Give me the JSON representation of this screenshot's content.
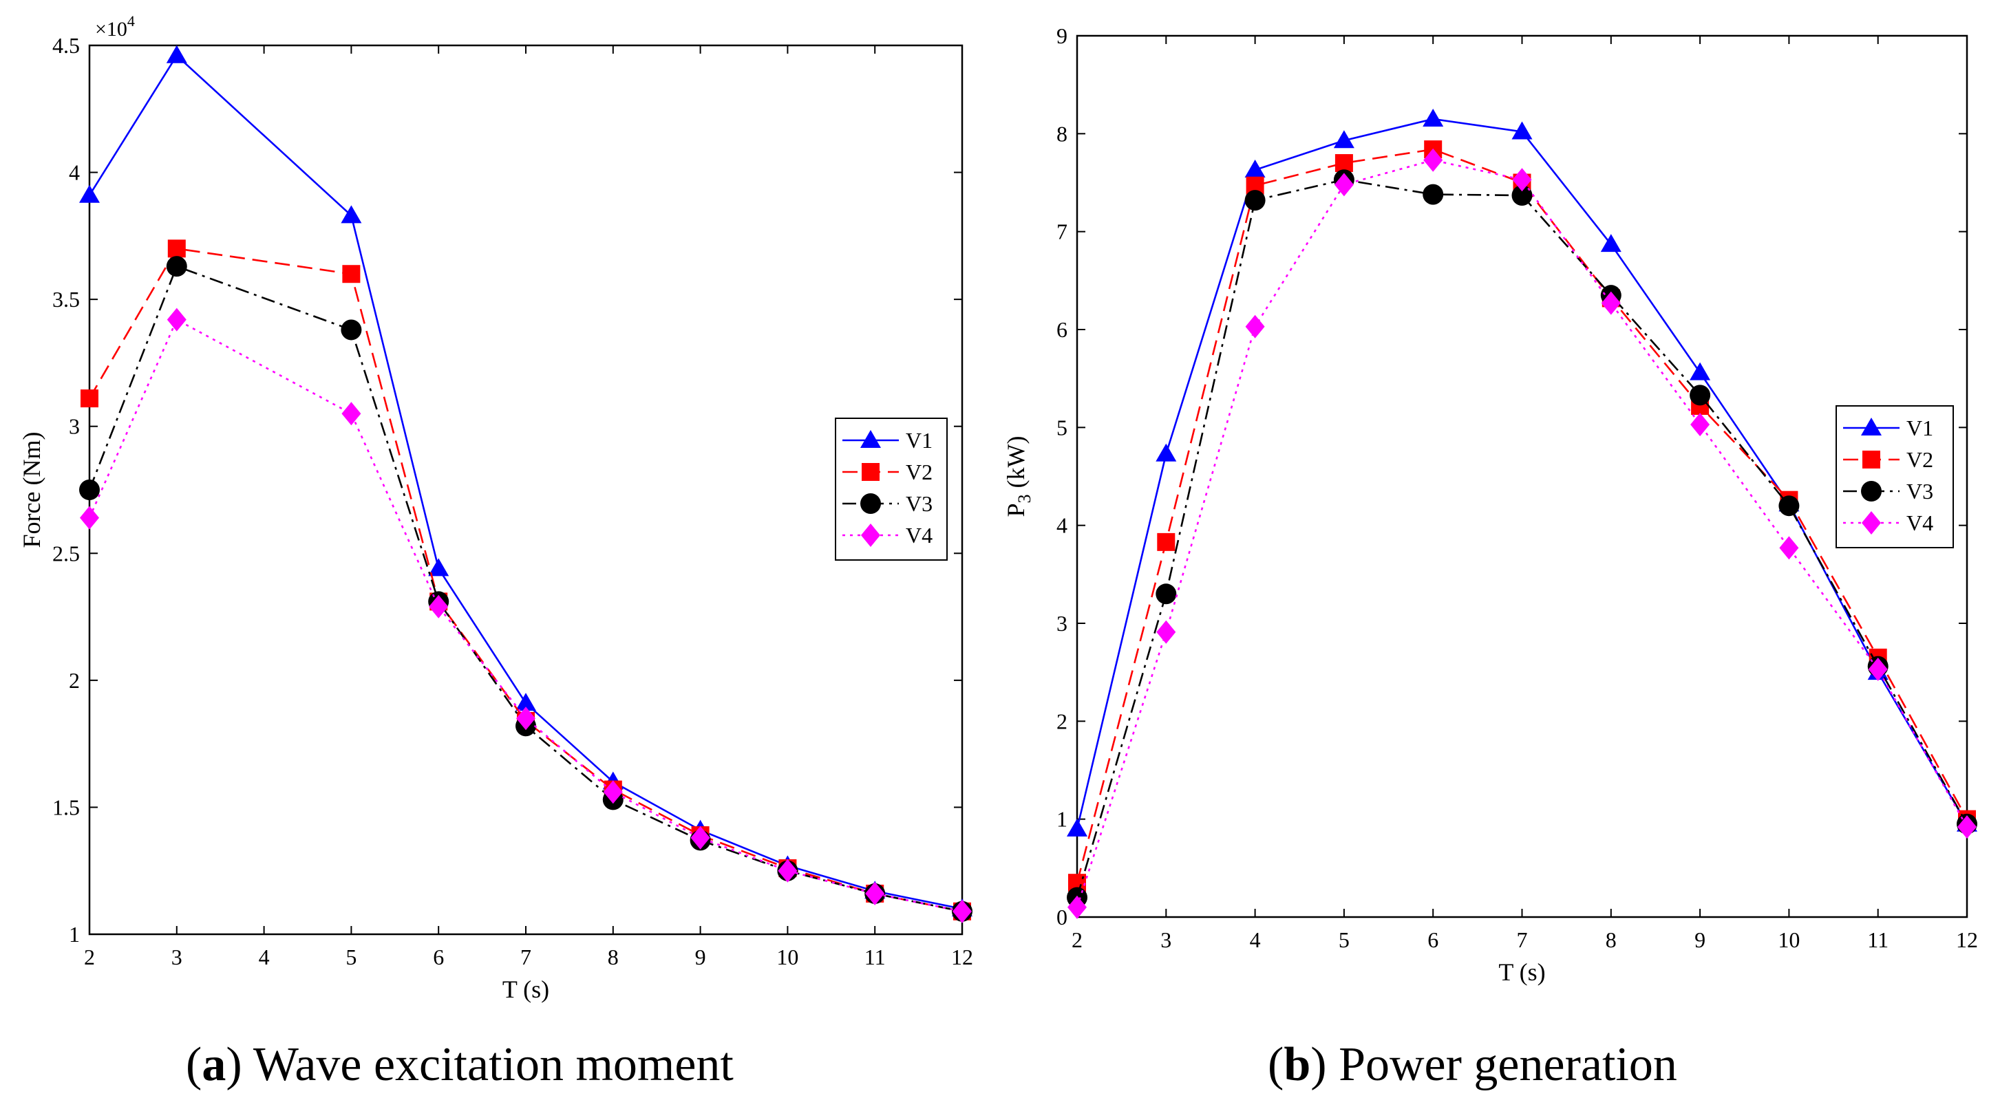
{
  "chart_data": [
    {
      "type": "line",
      "x": [
        2,
        3,
        5,
        6,
        7,
        8,
        9,
        10,
        11,
        12
      ],
      "xticks": [
        2,
        3,
        4,
        5,
        6,
        7,
        8,
        9,
        10,
        11,
        12
      ],
      "xlim": [
        2,
        12
      ],
      "ylim": [
        1,
        4.5
      ],
      "yticks": [
        "1",
        "1.5",
        "2",
        "2.5",
        "3",
        "3.5",
        "4",
        "4.5"
      ],
      "ytick_values": [
        1,
        1.5,
        2,
        2.5,
        3,
        3.5,
        4,
        4.5
      ],
      "yscale_label": "×10",
      "yscale_exp": "4",
      "xlabel": "T (s)",
      "ylabel": "Force (Nm)",
      "legend_position": "center-right",
      "series": [
        {
          "name": "V1",
          "color": "#0000ff",
          "dash": "solid",
          "marker": "triangle",
          "values": [
            3.91,
            4.46,
            3.83,
            2.44,
            1.91,
            1.6,
            1.41,
            1.27,
            1.17,
            1.1
          ]
        },
        {
          "name": "V2",
          "color": "#ff0000",
          "dash": "dashed",
          "marker": "square",
          "values": [
            3.11,
            3.7,
            3.6,
            2.31,
            1.84,
            1.57,
            1.39,
            1.26,
            1.16,
            1.09
          ]
        },
        {
          "name": "V3",
          "color": "#000000",
          "dash": "dashdot",
          "marker": "circle",
          "values": [
            2.75,
            3.63,
            3.38,
            2.31,
            1.82,
            1.53,
            1.37,
            1.25,
            1.16,
            1.09
          ]
        },
        {
          "name": "V4",
          "color": "#ff00ff",
          "dash": "dotted",
          "marker": "diamond",
          "values": [
            2.64,
            3.42,
            3.05,
            2.29,
            1.85,
            1.56,
            1.38,
            1.25,
            1.16,
            1.09
          ]
        }
      ]
    },
    {
      "type": "line",
      "x": [
        2,
        3,
        4,
        5,
        6,
        7,
        8,
        9,
        10,
        11,
        12
      ],
      "xticks": [
        2,
        3,
        4,
        5,
        6,
        7,
        8,
        9,
        10,
        11,
        12
      ],
      "xlim": [
        2,
        12
      ],
      "ylim": [
        0,
        9
      ],
      "yticks": [
        "0",
        "1",
        "2",
        "3",
        "4",
        "5",
        "6",
        "7",
        "8",
        "9"
      ],
      "ytick_values": [
        0,
        1,
        2,
        3,
        4,
        5,
        6,
        7,
        8,
        9
      ],
      "xlabel": "T (s)",
      "ylabel_main": "P",
      "ylabel_sub": "3",
      "ylabel_rest": " (kW)",
      "legend_position": "center-right",
      "series": [
        {
          "name": "V1",
          "color": "#0000ff",
          "dash": "solid",
          "marker": "triangle",
          "values": [
            0.9,
            4.73,
            7.63,
            7.93,
            8.15,
            8.02,
            6.87,
            5.56,
            4.22,
            2.5,
            0.95
          ]
        },
        {
          "name": "V2",
          "color": "#ff0000",
          "dash": "dashed",
          "marker": "square",
          "values": [
            0.35,
            3.83,
            7.47,
            7.7,
            7.84,
            7.5,
            6.32,
            5.22,
            4.26,
            2.65,
            1.0
          ]
        },
        {
          "name": "V3",
          "color": "#000000",
          "dash": "dashdot",
          "marker": "circle",
          "values": [
            0.2,
            3.3,
            7.32,
            7.53,
            7.38,
            7.37,
            6.35,
            5.33,
            4.2,
            2.56,
            0.95
          ]
        },
        {
          "name": "V4",
          "color": "#ff00ff",
          "dash": "dotted",
          "marker": "diamond",
          "values": [
            0.1,
            2.91,
            6.03,
            7.48,
            7.73,
            7.53,
            6.27,
            5.03,
            3.77,
            2.53,
            0.92
          ]
        }
      ]
    }
  ],
  "captions": {
    "a_label": "a",
    "a_text": "Wave excitation moment",
    "b_label": "b",
    "b_text": "Power generation"
  }
}
